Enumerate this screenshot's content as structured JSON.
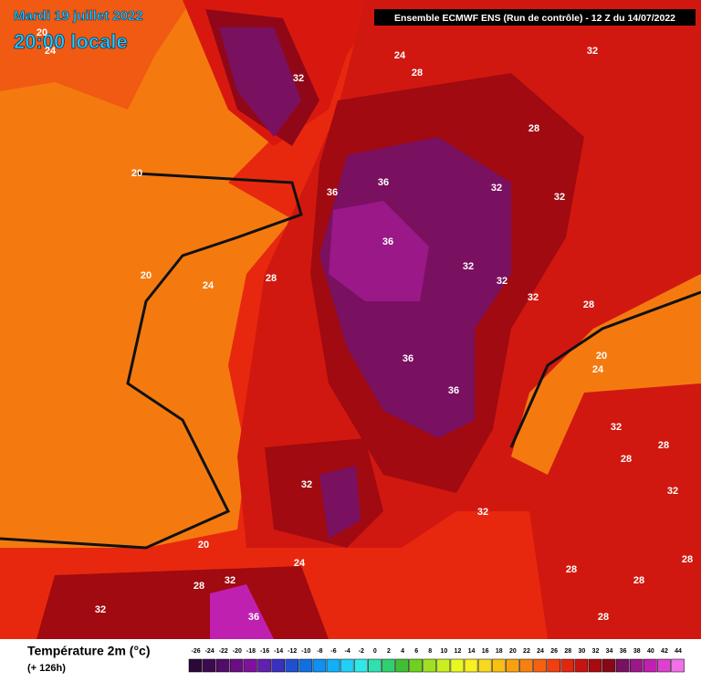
{
  "header": {
    "date": "Mardi 19 juillet 2022",
    "time": "20:00 locale",
    "model": "Ensemble ECMWF ENS  (Run de contrôle)  -  12 Z du 14/07/2022"
  },
  "map": {
    "contour_labels": [
      20,
      24,
      32,
      24,
      28,
      32,
      28,
      20,
      36,
      36,
      32,
      32,
      36,
      32,
      32,
      20,
      24,
      28,
      32,
      28,
      36,
      20,
      24,
      36,
      32,
      28,
      28,
      32,
      32,
      32,
      20,
      24,
      28,
      28,
      32,
      28,
      28,
      32,
      36,
      28
    ]
  },
  "legend": {
    "title": "Température 2m (°c)",
    "subtitle": "(+ 126h)",
    "ticks": [
      -26,
      -24,
      -22,
      -20,
      -18,
      -16,
      -14,
      -12,
      -10,
      -8,
      -6,
      -4,
      -2,
      0,
      2,
      4,
      6,
      8,
      10,
      12,
      14,
      16,
      18,
      20,
      22,
      24,
      26,
      28,
      30,
      32,
      34,
      36,
      38,
      40,
      42,
      44
    ],
    "colors": [
      "#2a0838",
      "#3c0a50",
      "#520c6a",
      "#6a0e84",
      "#80109e",
      "#6020b0",
      "#3a30c0",
      "#2050d0",
      "#1070e0",
      "#1090f0",
      "#10b0f8",
      "#20d0f8",
      "#30e8e8",
      "#30e0b0",
      "#30d070",
      "#40c030",
      "#70d020",
      "#a0e020",
      "#c8f020",
      "#e8f820",
      "#f8f020",
      "#f8d820",
      "#f8c010",
      "#f8a010",
      "#f88010",
      "#f86010",
      "#f04010",
      "#e02810",
      "#c81410",
      "#a80a10",
      "#880818",
      "#7a1060",
      "#9a1888",
      "#c020b0",
      "#e040d0",
      "#f070e8"
    ]
  }
}
